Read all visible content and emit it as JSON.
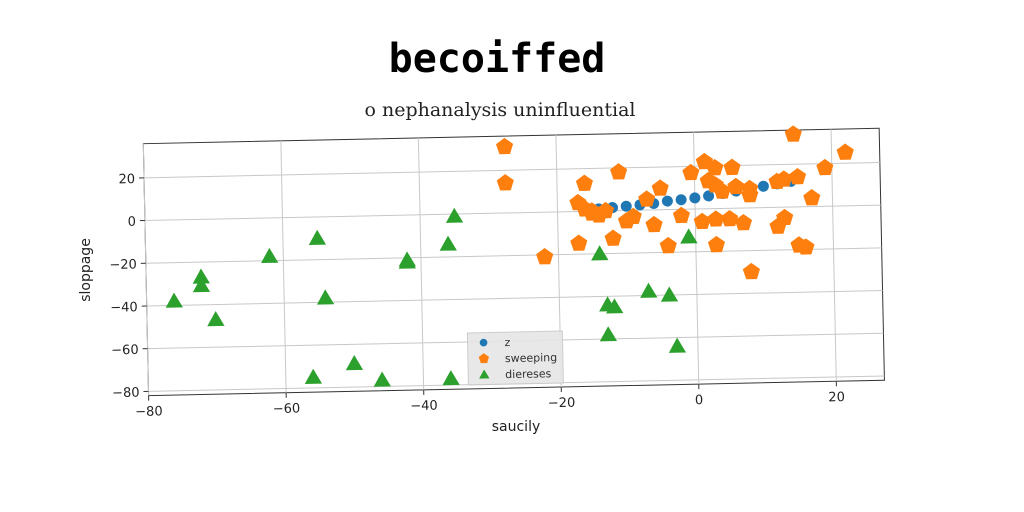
{
  "chart_data": {
    "type": "scatter",
    "title": "becoiffed",
    "subtitle": "o nephanalysis uninfluential",
    "xlabel": "saucily",
    "ylabel": "sloppage",
    "xlim": [
      -80,
      27
    ],
    "ylim": [
      -82,
      36
    ],
    "x_ticks": [
      -80,
      -60,
      -40,
      -20,
      0,
      20
    ],
    "y_ticks": [
      -80,
      -60,
      -40,
      -20,
      0,
      20
    ],
    "x_tick_labels": [
      "−80",
      "−60",
      "−40",
      "−20",
      "0",
      "20"
    ],
    "y_tick_labels": [
      "−80",
      "−60",
      "−40",
      "−20",
      "0",
      "20"
    ],
    "grid": true,
    "legend_position": "bottom-center",
    "series": [
      {
        "name": "z",
        "marker": "circle",
        "color": "#1f77b4",
        "points": [
          [
            -14,
            1
          ],
          [
            -12,
            1.5
          ],
          [
            -10,
            2
          ],
          [
            -8,
            2.5
          ],
          [
            -6,
            3
          ],
          [
            -4,
            4
          ],
          [
            -2,
            4.5
          ],
          [
            0,
            5.2
          ],
          [
            2,
            6
          ],
          [
            4,
            7
          ],
          [
            6,
            8
          ],
          [
            8,
            9
          ],
          [
            10,
            10
          ],
          [
            12,
            11
          ],
          [
            14,
            12
          ]
        ]
      },
      {
        "name": "sweeping",
        "marker": "pentagon",
        "color": "#ff7f0e",
        "points": [
          [
            14.5,
            34
          ],
          [
            22,
            25
          ],
          [
            19,
            18
          ],
          [
            17,
            4
          ],
          [
            15,
            14
          ],
          [
            13,
            13
          ],
          [
            12,
            12
          ],
          [
            13,
            -5
          ],
          [
            12,
            -9
          ],
          [
            15,
            -18
          ],
          [
            16,
            -19
          ],
          [
            -27.5,
            31
          ],
          [
            -27.5,
            14
          ],
          [
            -16,
            13
          ],
          [
            -11,
            18
          ],
          [
            -0.5,
            17
          ],
          [
            1.5,
            22
          ],
          [
            3,
            19
          ],
          [
            5.5,
            19
          ],
          [
            2,
            13
          ],
          [
            3,
            11
          ],
          [
            6,
            10
          ],
          [
            8,
            9
          ],
          [
            8,
            6
          ],
          [
            4,
            8
          ],
          [
            -5,
            10
          ],
          [
            -7,
            5
          ],
          [
            -2,
            -3
          ],
          [
            1,
            -6
          ],
          [
            3,
            -5
          ],
          [
            5,
            -5
          ],
          [
            7,
            -7
          ],
          [
            -4,
            -17
          ],
          [
            -10,
            -5
          ],
          [
            -12,
            -13
          ],
          [
            -17,
            -15
          ],
          [
            -22,
            -21
          ],
          [
            -16,
            1
          ],
          [
            -15,
            0
          ],
          [
            -14,
            -2
          ],
          [
            -17,
            4
          ],
          [
            -9,
            -3
          ],
          [
            -6,
            -7
          ],
          [
            3,
            -17
          ],
          [
            8,
            -30
          ],
          [
            -15,
            -1
          ],
          [
            -13,
            0
          ]
        ]
      },
      {
        "name": "diereses",
        "marker": "triangle",
        "color": "#2ca02c",
        "points": [
          [
            -35,
            -1
          ],
          [
            -36,
            -14
          ],
          [
            -42,
            -21
          ],
          [
            -42,
            -22
          ],
          [
            -55,
            -10
          ],
          [
            -62,
            -18
          ],
          [
            -72,
            -27
          ],
          [
            -72,
            -31
          ],
          [
            -76,
            -38
          ],
          [
            -70,
            -47
          ],
          [
            -54,
            -38
          ],
          [
            -14,
            -20
          ],
          [
            -1,
            -13
          ],
          [
            -7,
            -38
          ],
          [
            -4,
            -40
          ],
          [
            -13,
            -44
          ],
          [
            -12,
            -45
          ],
          [
            -13,
            -58
          ],
          [
            -3,
            -64
          ],
          [
            -36,
            -77
          ],
          [
            -46,
            -77
          ],
          [
            -50,
            -69
          ],
          [
            -56,
            -75
          ]
        ]
      }
    ]
  }
}
